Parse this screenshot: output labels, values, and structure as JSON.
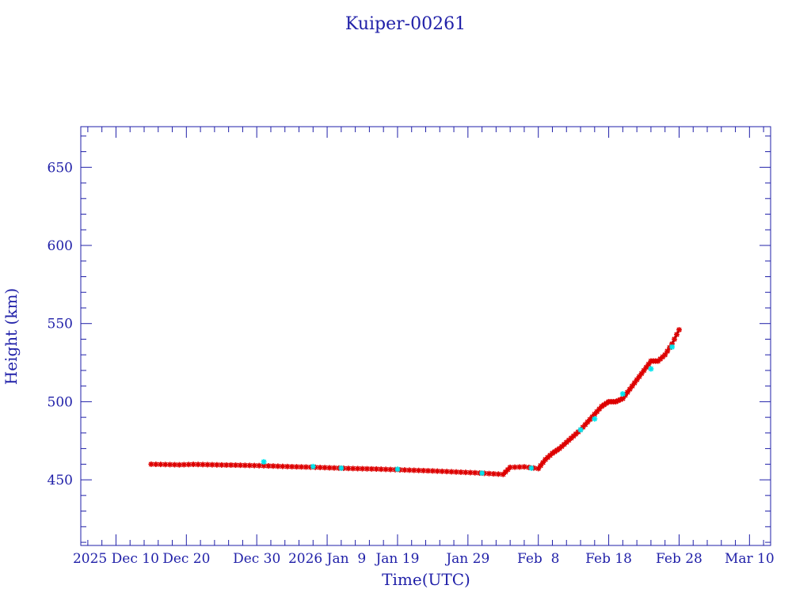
{
  "chart_data": {
    "type": "scatter",
    "title": "Kuiper-00261",
    "xlabel": "Time(UTC)",
    "ylabel": "Height (km)",
    "x_unit": "date (UTC)",
    "xlim": [
      "2025-12-05",
      "2026-03-13"
    ],
    "ylim": [
      408,
      676
    ],
    "y_ticks": [
      450,
      500,
      550,
      600,
      650
    ],
    "x_ticks": [
      {
        "date": "2025-12-10",
        "label": "2025 Dec 10"
      },
      {
        "date": "2025-12-20",
        "label": "Dec 20"
      },
      {
        "date": "2025-12-30",
        "label": "Dec 30"
      },
      {
        "date": "2026-01-09",
        "label": "2026 Jan  9"
      },
      {
        "date": "2026-01-19",
        "label": "Jan 19"
      },
      {
        "date": "2026-01-29",
        "label": "Jan 29"
      },
      {
        "date": "2026-02-08",
        "label": "Feb  8"
      },
      {
        "date": "2026-02-18",
        "label": "Feb 18"
      },
      {
        "date": "2026-02-28",
        "label": "Feb 28"
      },
      {
        "date": "2026-03-10",
        "label": "Mar 10"
      }
    ],
    "grid": false,
    "colors": {
      "axis": "#1f1fa8",
      "line": "#000000",
      "marker_primary": "#dd0000",
      "marker_secondary": "#00e5ee"
    },
    "series": [
      {
        "marker": "asterisk",
        "color": "#dd0000",
        "connected": true,
        "points": [
          [
            "2025-12-15",
            460
          ],
          [
            "2025-12-17",
            459.8
          ],
          [
            "2025-12-19",
            459.6
          ],
          [
            "2025-12-21",
            459.9
          ],
          [
            "2025-12-23",
            459.7
          ],
          [
            "2025-12-25",
            459.5
          ],
          [
            "2025-12-27",
            459.4
          ],
          [
            "2025-12-29",
            459.2
          ],
          [
            "2025-12-31",
            459.0
          ],
          [
            "2026-01-02",
            458.7
          ],
          [
            "2026-01-04",
            458.4
          ],
          [
            "2026-01-06",
            458.2
          ],
          [
            "2026-01-08",
            457.9
          ],
          [
            "2026-01-10",
            457.6
          ],
          [
            "2026-01-12",
            457.3
          ],
          [
            "2026-01-14",
            457.1
          ],
          [
            "2026-01-16",
            456.9
          ],
          [
            "2026-01-18",
            456.6
          ],
          [
            "2026-01-20",
            456.3
          ],
          [
            "2026-01-22",
            456.0
          ],
          [
            "2026-01-24",
            455.7
          ],
          [
            "2026-01-26",
            455.3
          ],
          [
            "2026-01-28",
            454.9
          ],
          [
            "2026-01-30",
            454.5
          ],
          [
            "2026-02-01",
            454.0
          ],
          [
            "2026-02-03",
            453.5
          ],
          [
            "2026-02-04",
            458.0
          ],
          [
            "2026-02-06",
            458.3
          ],
          [
            "2026-02-08",
            457.2
          ],
          [
            "2026-02-09",
            463
          ],
          [
            "2026-02-10",
            467
          ],
          [
            "2026-02-11",
            470
          ],
          [
            "2026-02-12",
            474
          ],
          [
            "2026-02-13",
            478
          ],
          [
            "2026-02-14",
            482
          ],
          [
            "2026-02-15",
            487
          ],
          [
            "2026-02-16",
            492
          ],
          [
            "2026-02-17",
            497
          ],
          [
            "2026-02-18",
            500
          ],
          [
            "2026-02-19",
            500
          ],
          [
            "2026-02-20",
            502
          ],
          [
            "2026-02-21",
            508
          ],
          [
            "2026-02-22",
            514
          ],
          [
            "2026-02-23",
            520
          ],
          [
            "2026-02-24",
            526
          ],
          [
            "2026-02-25",
            526
          ],
          [
            "2026-02-26",
            530
          ],
          [
            "2026-02-27",
            537
          ],
          [
            "2026-02-28",
            546
          ]
        ]
      },
      {
        "marker": "asterisk",
        "color": "#00e5ee",
        "connected": false,
        "points": [
          [
            "2025-12-31",
            461.5
          ],
          [
            "2026-01-07",
            458.5
          ],
          [
            "2026-01-11",
            457.5
          ],
          [
            "2026-01-19",
            456.8
          ],
          [
            "2026-01-31",
            454.3
          ],
          [
            "2026-02-07",
            457.5
          ],
          [
            "2026-02-14",
            482
          ],
          [
            "2026-02-16",
            489
          ],
          [
            "2026-02-20",
            505
          ],
          [
            "2026-02-24",
            521
          ],
          [
            "2026-02-27",
            535
          ]
        ]
      }
    ]
  }
}
